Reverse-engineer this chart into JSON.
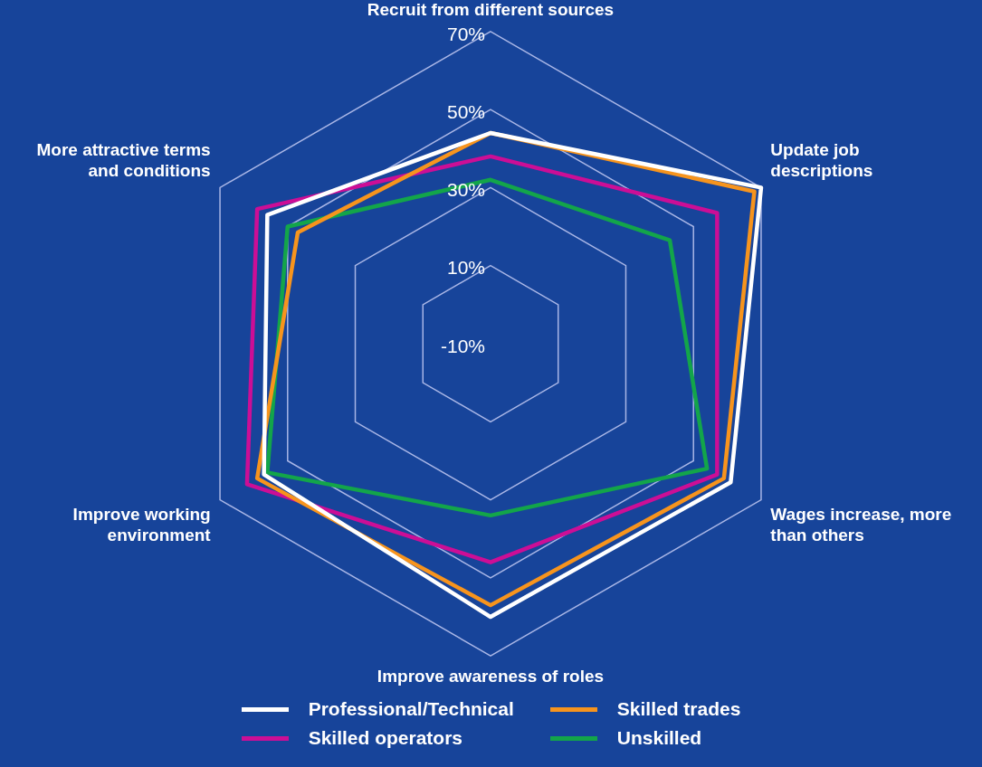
{
  "chart_data": {
    "type": "radar",
    "categories": [
      "Recruit from different sources",
      "Update job descriptions",
      "Wages increase, more than others",
      "Improve awareness of roles",
      "Improve working environment",
      "More attractive terms and conditions"
    ],
    "series": [
      {
        "name": "Professional/Technical",
        "color": "#ffffff",
        "values": [
          44,
          70,
          61,
          60,
          57,
          56
        ]
      },
      {
        "name": "Skilled trades",
        "color": "#f7941d",
        "values": [
          44,
          68,
          59,
          57,
          59,
          47
        ]
      },
      {
        "name": "Skilled operators",
        "color": "#cc0e96",
        "values": [
          38,
          57,
          57,
          46,
          62,
          59
        ]
      },
      {
        "name": "Unskilled",
        "color": "#13a54a",
        "values": [
          32,
          43,
          54,
          34,
          56,
          50
        ]
      }
    ],
    "ylim": [
      -10,
      70
    ],
    "yticks": [
      {
        "value": -10,
        "label": "-10%"
      },
      {
        "value": 10,
        "label": "10%"
      },
      {
        "value": 30,
        "label": "30%"
      },
      {
        "value": 50,
        "label": "50%"
      },
      {
        "value": 70,
        "label": "70%"
      }
    ],
    "grid": true,
    "legend": "bottom",
    "marker": "none",
    "line_style": "solid"
  }
}
